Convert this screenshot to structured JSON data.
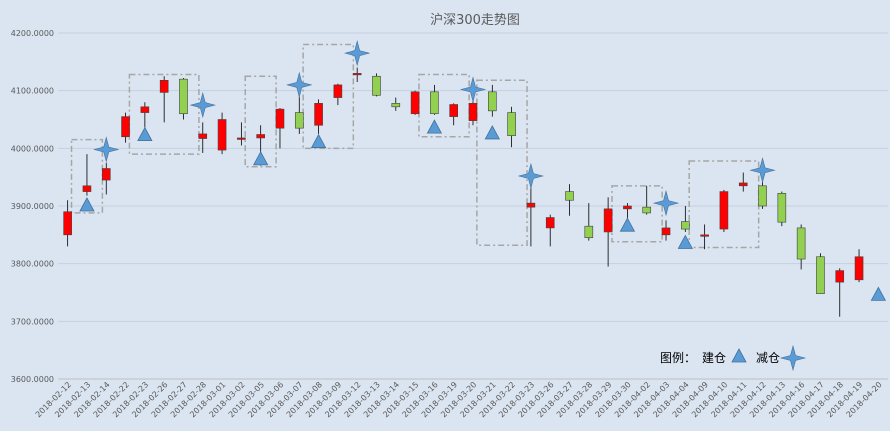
{
  "chart_data": {
    "type": "candlestick",
    "title": "沪深300走势图",
    "ylim": [
      3600,
      4200
    ],
    "yticks": [
      "3600.0000",
      "3700.0000",
      "3800.0000",
      "3900.0000",
      "4000.0000",
      "4100.0000",
      "4200.0000"
    ],
    "grid": true,
    "colors": {
      "up": "#ff0000",
      "down": "#92d050",
      "build": "#5b9bd5",
      "reduce": "#5b9bd5",
      "box": "#a6a6a6",
      "background": "#dbe5f2"
    },
    "legend": {
      "prefix": "图例：",
      "build_label": "建仓",
      "reduce_label": "减仓",
      "placement": "bottom-right"
    },
    "dates": [
      "2018-02-12",
      "2018-02-13",
      "2018-02-14",
      "2018-02-22",
      "2018-02-23",
      "2018-02-26",
      "2018-02-27",
      "2018-02-28",
      "2018-03-01",
      "2018-03-02",
      "2018-03-05",
      "2018-03-06",
      "2018-03-07",
      "2018-03-08",
      "2018-03-09",
      "2018-03-12",
      "2018-03-13",
      "2018-03-14",
      "2018-03-15",
      "2018-03-16",
      "2018-03-19",
      "2018-03-20",
      "2018-03-21",
      "2018-03-22",
      "2018-03-23",
      "2018-03-26",
      "2018-03-27",
      "2018-03-28",
      "2018-03-29",
      "2018-03-30",
      "2018-04-02",
      "2018-04-03",
      "2018-04-04",
      "2018-04-09",
      "2018-04-10",
      "2018-04-11",
      "2018-04-12",
      "2018-04-13",
      "2018-04-16",
      "2018-04-17",
      "2018-04-18",
      "2018-04-19",
      "2018-04-20"
    ],
    "candles": [
      {
        "o": 3850,
        "h": 3910,
        "l": 3830,
        "c": 3890
      },
      {
        "o": 3925,
        "h": 3990,
        "l": 3918,
        "c": 3935
      },
      {
        "o": 3945,
        "h": 3975,
        "l": 3920,
        "c": 3965
      },
      {
        "o": 4020,
        "h": 4062,
        "l": 4010,
        "c": 4055
      },
      {
        "o": 4062,
        "h": 4080,
        "l": 4030,
        "c": 4072
      },
      {
        "o": 4097,
        "h": 4125,
        "l": 4045,
        "c": 4118
      },
      {
        "o": 4120,
        "h": 4122,
        "l": 4050,
        "c": 4060
      },
      {
        "o": 4017,
        "h": 4045,
        "l": 3992,
        "c": 4025
      },
      {
        "o": 3997,
        "h": 4062,
        "l": 3990,
        "c": 4050
      },
      {
        "o": 4016,
        "h": 4045,
        "l": 4005,
        "c": 4018
      },
      {
        "o": 4018,
        "h": 4040,
        "l": 3970,
        "c": 4024
      },
      {
        "o": 4035,
        "h": 4070,
        "l": 4000,
        "c": 4068
      },
      {
        "o": 4062,
        "h": 4090,
        "l": 4025,
        "c": 4035
      },
      {
        "o": 4040,
        "h": 4085,
        "l": 4025,
        "c": 4078
      },
      {
        "o": 4088,
        "h": 4112,
        "l": 4075,
        "c": 4110
      },
      {
        "o": 4128,
        "h": 4140,
        "l": 4115,
        "c": 4130
      },
      {
        "o": 4125,
        "h": 4130,
        "l": 4090,
        "c": 4092
      },
      {
        "o": 4078,
        "h": 4088,
        "l": 4065,
        "c": 4072
      },
      {
        "o": 4060,
        "h": 4100,
        "l": 4058,
        "c": 4098
      },
      {
        "o": 4098,
        "h": 4110,
        "l": 4058,
        "c": 4060
      },
      {
        "o": 4055,
        "h": 4078,
        "l": 4040,
        "c": 4076
      },
      {
        "o": 4048,
        "h": 4085,
        "l": 4040,
        "c": 4078
      },
      {
        "o": 4098,
        "h": 4110,
        "l": 4055,
        "c": 4065
      },
      {
        "o": 4062,
        "h": 4072,
        "l": 4002,
        "c": 4022
      },
      {
        "o": 3898,
        "h": 3935,
        "l": 3830,
        "c": 3905
      },
      {
        "o": 3862,
        "h": 3885,
        "l": 3830,
        "c": 3880
      },
      {
        "o": 3925,
        "h": 3938,
        "l": 3883,
        "c": 3910
      },
      {
        "o": 3865,
        "h": 3905,
        "l": 3840,
        "c": 3845
      },
      {
        "o": 3855,
        "h": 3915,
        "l": 3795,
        "c": 3895
      },
      {
        "o": 3895,
        "h": 3905,
        "l": 3870,
        "c": 3900
      },
      {
        "o": 3898,
        "h": 3935,
        "l": 3885,
        "c": 3888
      },
      {
        "o": 3850,
        "h": 3875,
        "l": 3840,
        "c": 3862
      },
      {
        "o": 3873,
        "h": 3900,
        "l": 3855,
        "c": 3860
      },
      {
        "o": 3850,
        "h": 3868,
        "l": 3825,
        "c": 3850
      },
      {
        "o": 3860,
        "h": 3928,
        "l": 3855,
        "c": 3925
      },
      {
        "o": 3935,
        "h": 3958,
        "l": 3925,
        "c": 3940
      },
      {
        "o": 3935,
        "h": 3960,
        "l": 3895,
        "c": 3900
      },
      {
        "o": 3922,
        "h": 3925,
        "l": 3865,
        "c": 3872
      },
      {
        "o": 3862,
        "h": 3868,
        "l": 3790,
        "c": 3808
      },
      {
        "o": 3812,
        "h": 3818,
        "l": 3748,
        "c": 3748
      },
      {
        "o": 3768,
        "h": 3792,
        "l": 3708,
        "c": 3788
      },
      {
        "o": 3772,
        "h": 3825,
        "l": 3768,
        "c": 3812
      },
      {
        "o": 3745,
        "h": 3745,
        "l": 3745,
        "c": 3745
      }
    ],
    "build_points": [
      {
        "i": 1,
        "y": 3900
      },
      {
        "i": 4,
        "y": 4022
      },
      {
        "i": 10,
        "y": 3980
      },
      {
        "i": 13,
        "y": 4010
      },
      {
        "i": 19,
        "y": 4035
      },
      {
        "i": 22,
        "y": 4025
      },
      {
        "i": 29,
        "y": 3865
      },
      {
        "i": 32,
        "y": 3835
      },
      {
        "i": 42,
        "y": 3745
      }
    ],
    "reduce_points": [
      {
        "i": 2,
        "y": 3998
      },
      {
        "i": 7,
        "y": 4075
      },
      {
        "i": 12,
        "y": 4110
      },
      {
        "i": 15,
        "y": 4165
      },
      {
        "i": 21,
        "y": 4102
      },
      {
        "i": 24,
        "y": 3952
      },
      {
        "i": 31,
        "y": 3905
      },
      {
        "i": 36,
        "y": 3962
      }
    ],
    "boxes": [
      {
        "from": 0.7,
        "to": 2.3,
        "top": 4015,
        "bottom": 3888
      },
      {
        "from": 3.7,
        "to": 7.3,
        "top": 4128,
        "bottom": 3990
      },
      {
        "from": 9.7,
        "to": 11.3,
        "top": 4125,
        "bottom": 3968
      },
      {
        "from": 12.7,
        "to": 15.3,
        "top": 4180,
        "bottom": 4000
      },
      {
        "from": 18.7,
        "to": 21.3,
        "top": 4128,
        "bottom": 4020
      },
      {
        "from": 21.7,
        "to": 24.3,
        "top": 4118,
        "bottom": 3832
      },
      {
        "from": 28.7,
        "to": 31.3,
        "top": 3935,
        "bottom": 3838
      },
      {
        "from": 32.7,
        "to": 36.3,
        "top": 3978,
        "bottom": 3828
      }
    ]
  }
}
